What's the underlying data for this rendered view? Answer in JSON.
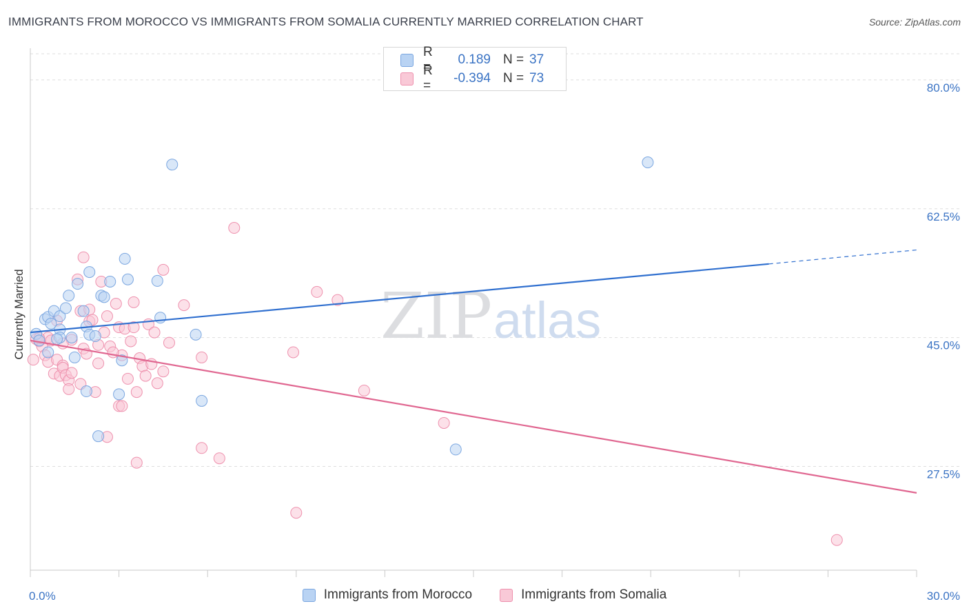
{
  "title": "IMMIGRANTS FROM MOROCCO VS IMMIGRANTS FROM SOMALIA CURRENTLY MARRIED CORRELATION CHART",
  "source": "Source: ZipAtlas.com",
  "watermark": {
    "zip": "ZIP",
    "atlas": "atlas"
  },
  "legend": [
    {
      "r_label": "R =",
      "r_value": "0.189",
      "n_label": "N =",
      "n_value": "37",
      "fill": "#b9d3f3",
      "stroke": "#7aa6e0"
    },
    {
      "r_label": "R =",
      "r_value": "-0.394",
      "n_label": "N =",
      "n_value": "73",
      "fill": "#f9c9d7",
      "stroke": "#ee90ad"
    }
  ],
  "bottom_legend": [
    "Immigrants from Morocco",
    "Immigrants from Somalia"
  ],
  "chart_data": {
    "type": "scatter",
    "title": "IMMIGRANTS FROM MOROCCO VS IMMIGRANTS FROM SOMALIA CURRENTLY MARRIED CORRELATION CHART",
    "xlabel": "",
    "ylabel": "Currently Married",
    "xlim": [
      0,
      30
    ],
    "ylim": [
      13.4,
      84.3
    ],
    "x_tick_labels": [
      {
        "value": 0,
        "label": "0.0%"
      },
      {
        "value": 30,
        "label": "30.0%"
      }
    ],
    "y_tick_labels": [
      {
        "value": 80,
        "label": "80.0%"
      },
      {
        "value": 62.5,
        "label": "62.5%"
      },
      {
        "value": 45,
        "label": "45.0%"
      },
      {
        "value": 27.5,
        "label": "27.5%"
      }
    ],
    "colors": {
      "morocco_fill": "#b9d3f3",
      "morocco_stroke": "#7aa6e0",
      "morocco_line": "#2f6fcf",
      "somalia_fill": "#f9c9d7",
      "somalia_stroke": "#ee90ad",
      "somalia_line": "#e06690",
      "tick_label": "#3a73c4",
      "grid": "#dddddd"
    },
    "series": [
      {
        "name": "Immigrants from Morocco",
        "trend": {
          "x0": 0,
          "y0": 45.7,
          "x1": 25.0,
          "y1": 55.0,
          "dash_to_x": 30,
          "dash_to_y": 56.9
        },
        "points": [
          [
            0.2,
            45.5
          ],
          [
            0.5,
            47.5
          ],
          [
            0.6,
            47.8
          ],
          [
            0.7,
            46.9
          ],
          [
            0.8,
            48.6
          ],
          [
            1.0,
            46.1
          ],
          [
            1.0,
            47.9
          ],
          [
            1.0,
            45.0
          ],
          [
            1.2,
            49.0
          ],
          [
            1.3,
            50.7
          ],
          [
            1.4,
            45.0
          ],
          [
            1.5,
            42.3
          ],
          [
            1.6,
            52.3
          ],
          [
            1.8,
            48.6
          ],
          [
            1.9,
            46.5
          ],
          [
            1.9,
            37.7
          ],
          [
            2.0,
            45.4
          ],
          [
            2.0,
            53.9
          ],
          [
            2.2,
            45.2
          ],
          [
            2.3,
            31.6
          ],
          [
            2.4,
            50.7
          ],
          [
            2.5,
            50.5
          ],
          [
            2.7,
            52.6
          ],
          [
            3.0,
            37.3
          ],
          [
            3.1,
            41.9
          ],
          [
            3.2,
            55.7
          ],
          [
            3.3,
            52.9
          ],
          [
            4.3,
            52.7
          ],
          [
            4.4,
            47.7
          ],
          [
            4.8,
            68.5
          ],
          [
            5.6,
            45.4
          ],
          [
            5.8,
            36.4
          ],
          [
            14.4,
            29.8
          ],
          [
            20.9,
            68.8
          ],
          [
            0.3,
            44.6
          ],
          [
            0.6,
            43.0
          ],
          [
            0.9,
            44.8
          ]
        ]
      },
      {
        "name": "Immigrants from Somalia",
        "trend": {
          "x0": 0,
          "y0": 44.6,
          "x1": 30,
          "y1": 23.9
        },
        "points": [
          [
            0.1,
            42.0
          ],
          [
            0.2,
            44.8
          ],
          [
            0.3,
            44.5
          ],
          [
            0.4,
            43.8
          ],
          [
            0.5,
            42.6
          ],
          [
            0.6,
            41.7
          ],
          [
            0.6,
            45.0
          ],
          [
            0.7,
            44.6
          ],
          [
            0.8,
            40.1
          ],
          [
            0.9,
            47.3
          ],
          [
            0.9,
            42.0
          ],
          [
            1.0,
            39.8
          ],
          [
            1.1,
            41.2
          ],
          [
            1.1,
            40.9
          ],
          [
            1.2,
            39.9
          ],
          [
            1.3,
            39.2
          ],
          [
            1.3,
            38.0
          ],
          [
            1.4,
            44.7
          ],
          [
            1.4,
            40.2
          ],
          [
            1.6,
            52.9
          ],
          [
            1.7,
            48.6
          ],
          [
            1.7,
            38.7
          ],
          [
            1.8,
            55.9
          ],
          [
            1.8,
            43.5
          ],
          [
            1.9,
            42.8
          ],
          [
            2.0,
            47.2
          ],
          [
            2.0,
            48.8
          ],
          [
            2.1,
            47.4
          ],
          [
            2.2,
            37.6
          ],
          [
            2.3,
            44.0
          ],
          [
            2.3,
            41.5
          ],
          [
            2.4,
            52.6
          ],
          [
            2.5,
            45.7
          ],
          [
            2.6,
            47.9
          ],
          [
            2.6,
            31.5
          ],
          [
            2.7,
            43.8
          ],
          [
            2.9,
            49.6
          ],
          [
            3.0,
            46.4
          ],
          [
            3.0,
            35.7
          ],
          [
            3.1,
            42.6
          ],
          [
            3.1,
            35.7
          ],
          [
            3.2,
            46.2
          ],
          [
            3.3,
            39.4
          ],
          [
            3.4,
            44.5
          ],
          [
            3.5,
            49.8
          ],
          [
            3.5,
            46.4
          ],
          [
            3.6,
            37.6
          ],
          [
            3.6,
            28.0
          ],
          [
            3.7,
            42.2
          ],
          [
            3.8,
            41.1
          ],
          [
            3.9,
            39.8
          ],
          [
            4.0,
            46.8
          ],
          [
            4.1,
            41.4
          ],
          [
            4.2,
            45.7
          ],
          [
            4.3,
            38.8
          ],
          [
            4.5,
            40.4
          ],
          [
            4.5,
            54.2
          ],
          [
            4.7,
            44.3
          ],
          [
            5.2,
            49.4
          ],
          [
            5.8,
            30.0
          ],
          [
            5.8,
            42.3
          ],
          [
            6.4,
            28.6
          ],
          [
            6.9,
            59.9
          ],
          [
            8.9,
            43.0
          ],
          [
            9.0,
            21.2
          ],
          [
            9.7,
            51.2
          ],
          [
            10.4,
            50.1
          ],
          [
            11.3,
            37.8
          ],
          [
            14.0,
            33.4
          ],
          [
            27.3,
            17.5
          ],
          [
            0.3,
            44.9
          ],
          [
            1.1,
            44.2
          ],
          [
            2.8,
            43.0
          ]
        ]
      }
    ]
  }
}
